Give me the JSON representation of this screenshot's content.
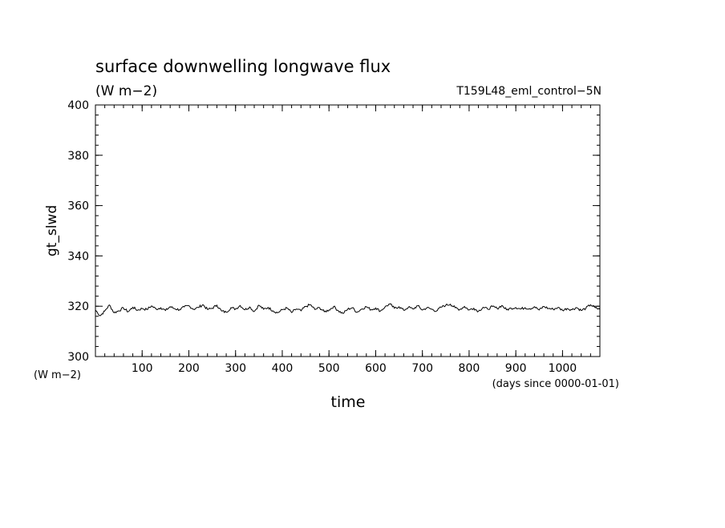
{
  "chart_data": {
    "type": "line",
    "title": "surface downwelling longwave flux",
    "subtitle": "(W m−2)",
    "run_label": "T159L48_eml_control−5N",
    "xlabel": "time",
    "ylabel": "gt_slwd",
    "y_unit_label": "(W m−2)",
    "x_unit_label": "(days since 0000-01-01)",
    "xlim": [
      0,
      1080
    ],
    "ylim": [
      300,
      400
    ],
    "x_ticks": [
      100,
      200,
      300,
      400,
      500,
      600,
      700,
      800,
      900,
      1000
    ],
    "x_tick_labels": [
      "100",
      "200",
      "300",
      "400",
      "500",
      "600",
      "700",
      "800",
      "900",
      "1000"
    ],
    "y_ticks": [
      300,
      320,
      340,
      360,
      380,
      400
    ],
    "y_tick_labels": [
      "300",
      "320",
      "340",
      "360",
      "380",
      "400"
    ],
    "x_minor_step": 20,
    "y_minor_step": 4,
    "grid": false,
    "series": [
      {
        "color": "#000000",
        "x": [
          0,
          10,
          20,
          30,
          40,
          50,
          60,
          70,
          80,
          90,
          100,
          110,
          120,
          130,
          140,
          150,
          160,
          170,
          180,
          190,
          200,
          210,
          220,
          230,
          240,
          250,
          260,
          270,
          280,
          290,
          300,
          310,
          320,
          330,
          340,
          350,
          360,
          370,
          380,
          390,
          400,
          410,
          420,
          430,
          440,
          450,
          460,
          470,
          480,
          490,
          500,
          510,
          520,
          530,
          540,
          550,
          560,
          570,
          580,
          590,
          600,
          610,
          620,
          630,
          640,
          650,
          660,
          670,
          680,
          690,
          700,
          710,
          720,
          730,
          740,
          750,
          760,
          770,
          780,
          790,
          800,
          810,
          820,
          830,
          840,
          850,
          860,
          870,
          880,
          890,
          900,
          910,
          920,
          930,
          940,
          950,
          960,
          970,
          980,
          990,
          1000,
          1010,
          1020,
          1030,
          1040,
          1050,
          1060,
          1070,
          1080
        ],
        "y": [
          318.5,
          316.2,
          318.1,
          320.5,
          317.4,
          318.2,
          319.3,
          317.8,
          319.6,
          318.4,
          319.1,
          318.7,
          320.1,
          318.9,
          319.4,
          318.3,
          319.8,
          319.0,
          318.6,
          319.7,
          320.2,
          318.8,
          319.5,
          320.6,
          318.7,
          319.2,
          320.4,
          318.1,
          317.6,
          319.4,
          318.9,
          320.3,
          318.6,
          319.7,
          317.9,
          320.4,
          318.8,
          319.5,
          318.2,
          317.4,
          318.6,
          319.3,
          317.5,
          318.9,
          318.2,
          319.9,
          320.6,
          318.7,
          319.4,
          317.8,
          318.5,
          319.9,
          318.2,
          317.1,
          318.8,
          319.4,
          317.6,
          318.9,
          319.8,
          318.6,
          319.3,
          318.1,
          319.7,
          320.9,
          319.2,
          319.8,
          318.4,
          319.6,
          318.9,
          320.2,
          318.5,
          319.4,
          318.8,
          318.1,
          319.6,
          320.4,
          320.8,
          319.4,
          318.7,
          319.9,
          318.5,
          319.2,
          318.0,
          319.6,
          318.8,
          319.9,
          319.1,
          320.3,
          318.6,
          319.2,
          319.5,
          318.9,
          319.4,
          319.0,
          319.8,
          318.5,
          319.9,
          319.1,
          318.8,
          319.5,
          318.4,
          319.1,
          318.6,
          319.5,
          318.3,
          319.2,
          320.6,
          319.4,
          318.7
        ]
      }
    ]
  }
}
